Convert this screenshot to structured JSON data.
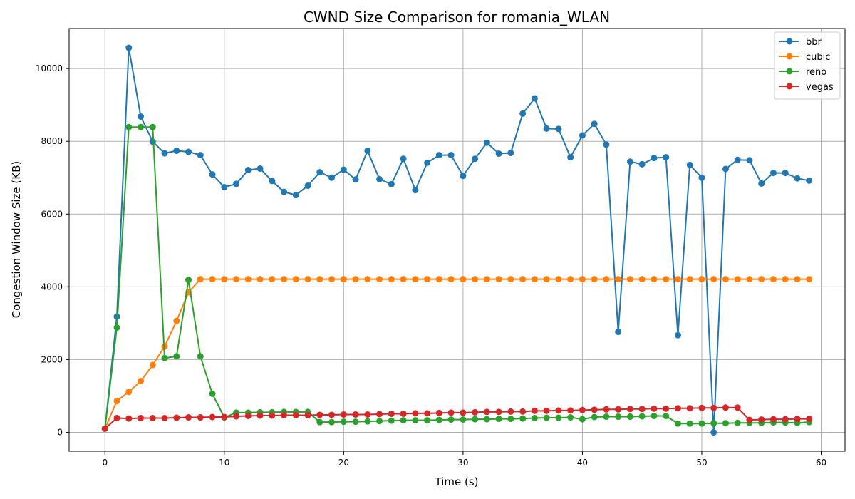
{
  "chart_data": {
    "type": "line",
    "title": "CWND Size Comparison for romania_WLAN",
    "xlabel": "Time (s)",
    "ylabel": "Congestion Window Size (KB)",
    "xlim": [
      -3,
      62
    ],
    "ylim": [
      -520,
      11100
    ],
    "xticks": [
      0,
      10,
      20,
      30,
      40,
      50,
      60
    ],
    "yticks": [
      0,
      2000,
      4000,
      6000,
      8000,
      10000
    ],
    "grid": true,
    "legend_position": "top-right",
    "x": [
      0,
      1,
      2,
      3,
      4,
      5,
      6,
      7,
      8,
      9,
      10,
      11,
      12,
      13,
      14,
      15,
      16,
      17,
      18,
      19,
      20,
      21,
      22,
      23,
      24,
      25,
      26,
      27,
      28,
      29,
      30,
      31,
      32,
      33,
      34,
      35,
      36,
      37,
      38,
      39,
      40,
      41,
      42,
      43,
      44,
      45,
      46,
      47,
      48,
      49,
      50,
      51,
      52,
      53,
      54,
      55,
      56,
      57,
      58,
      59
    ],
    "series": [
      {
        "name": "bbr",
        "color": "#1f77b4",
        "values": [
          100,
          3180,
          10570,
          8680,
          7990,
          7670,
          7740,
          7710,
          7620,
          7090,
          6740,
          6830,
          7210,
          7250,
          6910,
          6610,
          6520,
          6780,
          7150,
          7000,
          7220,
          6950,
          7740,
          6960,
          6820,
          7520,
          6660,
          7410,
          7620,
          7620,
          7050,
          7520,
          7960,
          7660,
          7680,
          8760,
          9180,
          8350,
          8340,
          7560,
          8160,
          8480,
          7910,
          2760,
          7440,
          7370,
          7540,
          7560,
          2670,
          7350,
          7000,
          0,
          7240,
          7490,
          7480,
          6840,
          7130,
          7130,
          6980,
          6920
        ]
      },
      {
        "name": "cubic",
        "color": "#ff7f0e",
        "values": [
          100,
          860,
          1110,
          1410,
          1850,
          2360,
          3060,
          3850,
          4210,
          4210,
          4210,
          4210,
          4210,
          4210,
          4210,
          4210,
          4210,
          4210,
          4210,
          4210,
          4210,
          4210,
          4210,
          4210,
          4210,
          4210,
          4210,
          4210,
          4210,
          4210,
          4210,
          4210,
          4210,
          4210,
          4210,
          4210,
          4210,
          4210,
          4210,
          4210,
          4210,
          4210,
          4210,
          4210,
          4210,
          4210,
          4210,
          4210,
          4210,
          4210,
          4210,
          4210,
          4210,
          4210,
          4210,
          4210,
          4210,
          4210,
          4210,
          4210
        ]
      },
      {
        "name": "reno",
        "color": "#2ca02c",
        "values": [
          100,
          2880,
          8390,
          8390,
          8390,
          2040,
          2090,
          4190,
          2090,
          1060,
          410,
          540,
          540,
          550,
          550,
          560,
          560,
          560,
          280,
          280,
          290,
          290,
          300,
          310,
          320,
          330,
          330,
          330,
          340,
          350,
          350,
          360,
          360,
          370,
          370,
          380,
          390,
          400,
          400,
          410,
          360,
          420,
          430,
          430,
          430,
          440,
          450,
          450,
          240,
          240,
          240,
          250,
          250,
          260,
          260,
          260,
          270,
          270,
          260,
          280
        ]
      },
      {
        "name": "vegas",
        "color": "#d62728",
        "values": [
          100,
          390,
          380,
          390,
          390,
          390,
          400,
          410,
          410,
          420,
          420,
          440,
          450,
          460,
          460,
          470,
          470,
          470,
          480,
          480,
          490,
          490,
          490,
          500,
          510,
          510,
          520,
          520,
          530,
          540,
          540,
          550,
          560,
          560,
          570,
          570,
          590,
          590,
          600,
          600,
          610,
          620,
          630,
          630,
          640,
          640,
          650,
          650,
          660,
          660,
          670,
          670,
          680,
          680,
          340,
          350,
          360,
          360,
          370,
          370
        ]
      }
    ]
  }
}
